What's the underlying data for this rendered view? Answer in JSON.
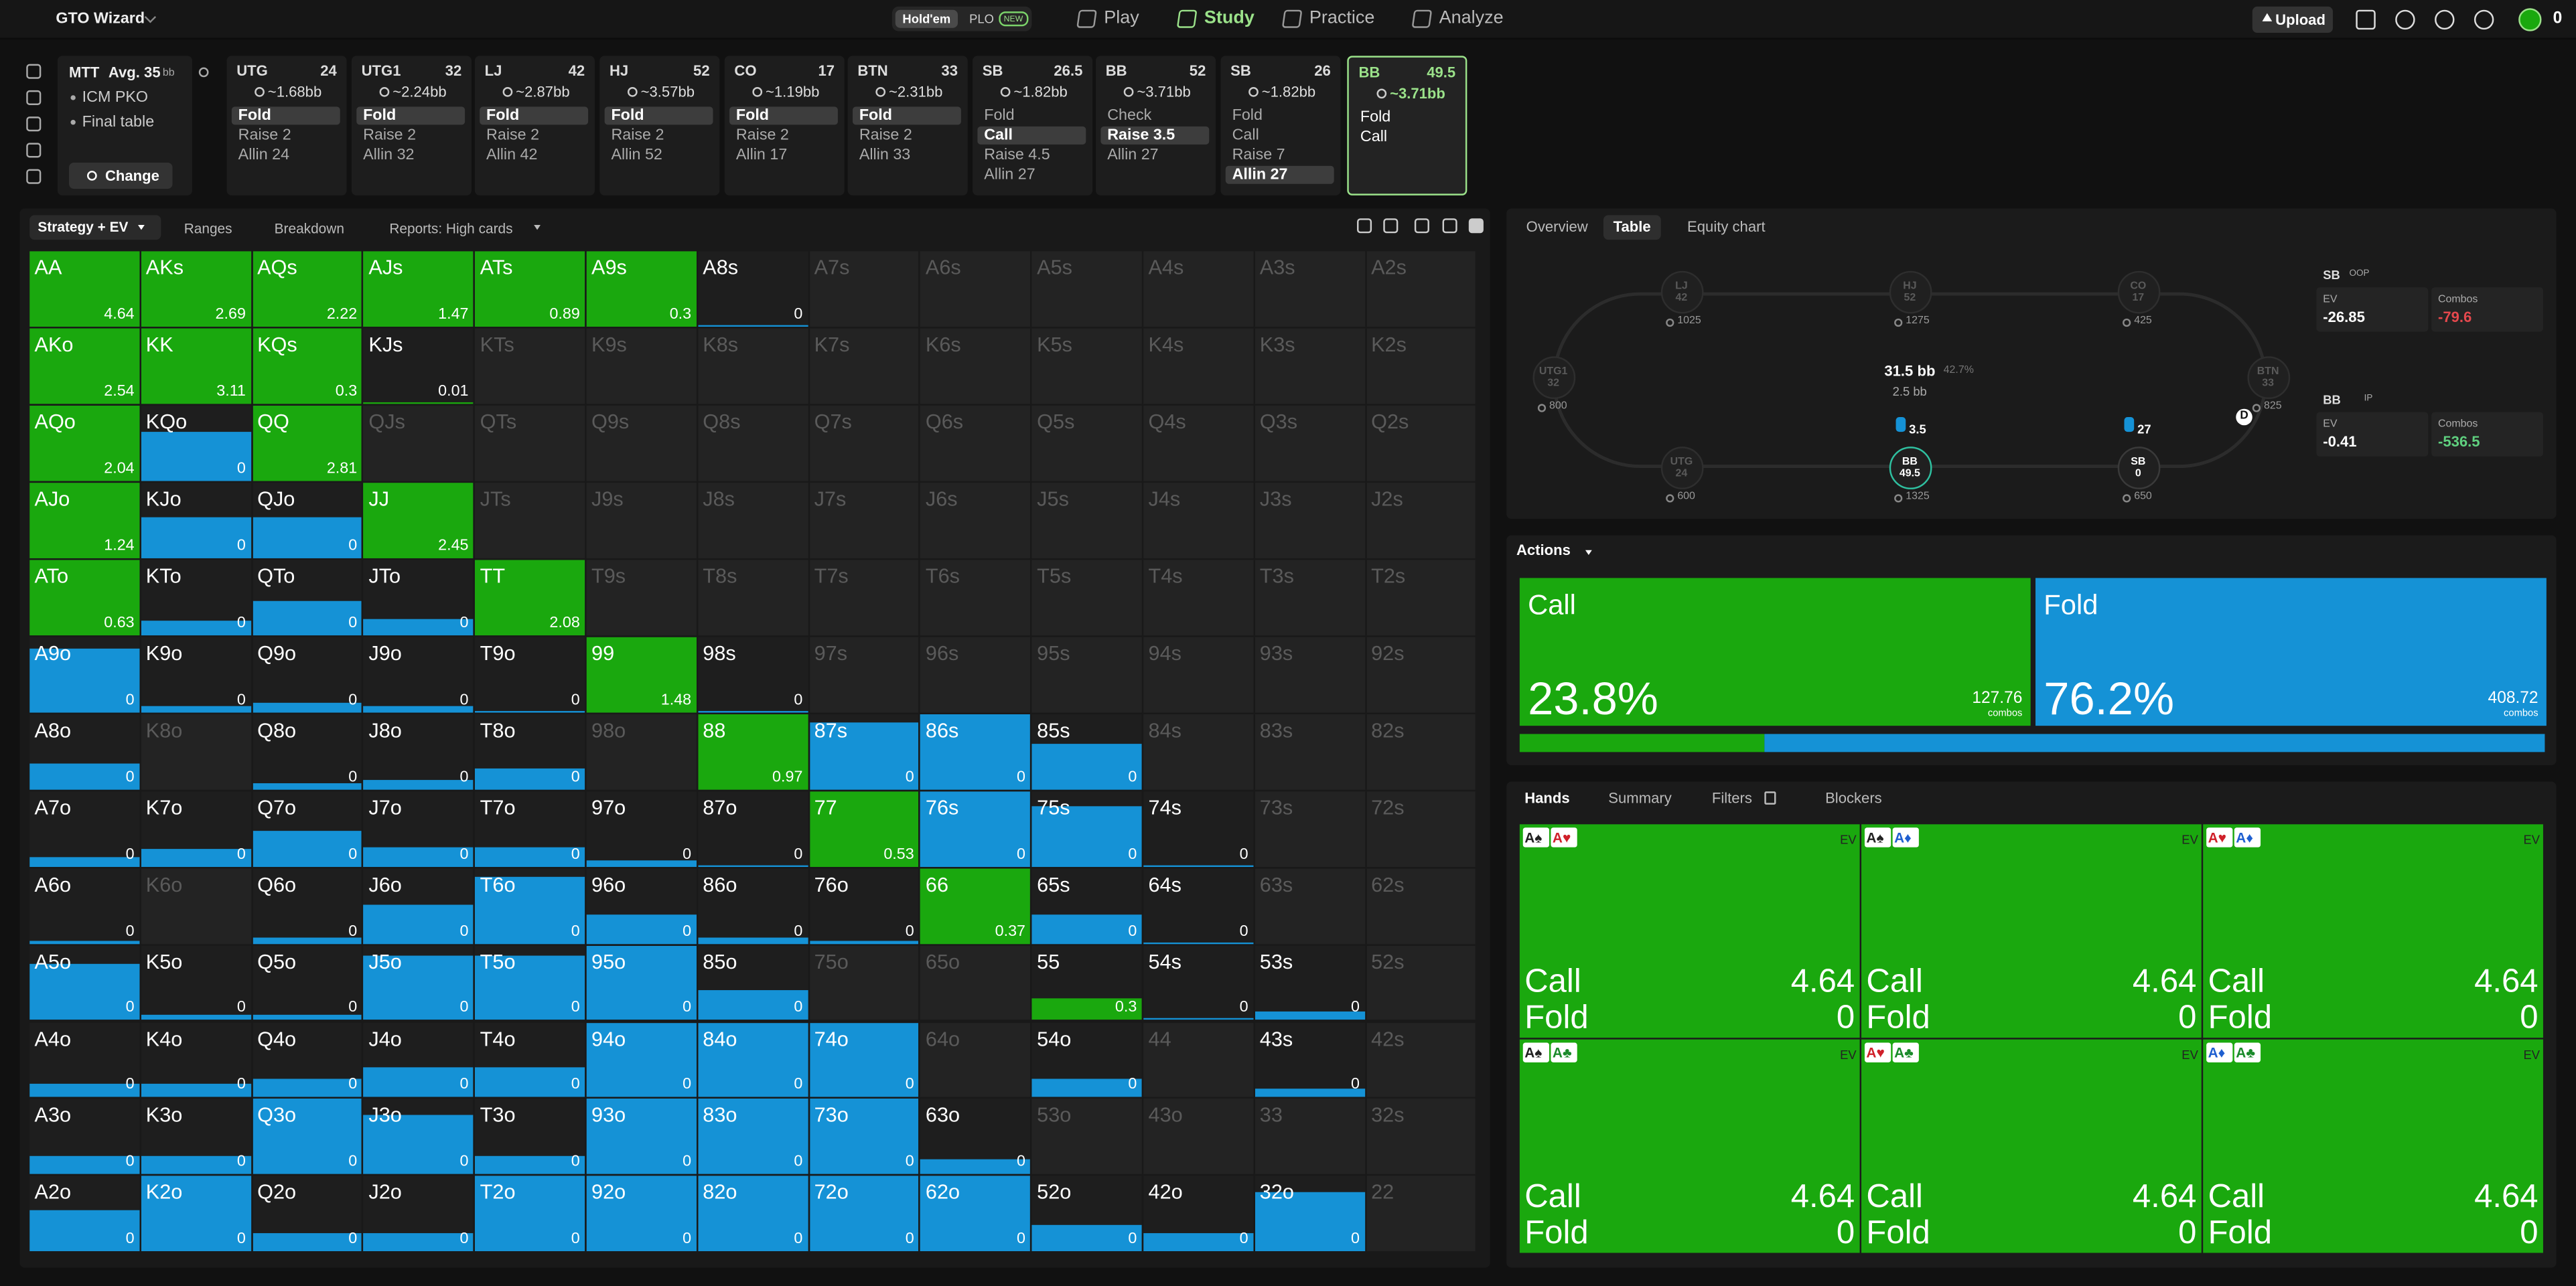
{
  "nav": {
    "brand": "GTO Wizard",
    "game_modes": [
      "Hold'em",
      "PLO"
    ],
    "badge": "NEW",
    "menu": [
      "Play",
      "Study",
      "Practice",
      "Analyze"
    ],
    "active_menu": 1,
    "upload": "Upload",
    "balance": "0"
  },
  "settings": {
    "format": "MTT",
    "avg": "Avg. 35",
    "avg_unit": "bb",
    "items": [
      "ICM PKO",
      "Final table"
    ],
    "button": "Change"
  },
  "positions": [
    {
      "pos": "UTG",
      "stack": 24,
      "ev": "~1.68bb",
      "actions": [
        "Fold",
        "Raise 2",
        "Allin 24"
      ],
      "selected": 0
    },
    {
      "pos": "UTG1",
      "stack": 32,
      "ev": "~2.24bb",
      "actions": [
        "Fold",
        "Raise 2",
        "Allin 32"
      ],
      "selected": 0
    },
    {
      "pos": "LJ",
      "stack": 42,
      "ev": "~2.87bb",
      "actions": [
        "Fold",
        "Raise 2",
        "Allin 42"
      ],
      "selected": 0
    },
    {
      "pos": "HJ",
      "stack": 52,
      "ev": "~3.57bb",
      "actions": [
        "Fold",
        "Raise 2",
        "Allin 52"
      ],
      "selected": 0
    },
    {
      "pos": "CO",
      "stack": 17,
      "ev": "~1.19bb",
      "actions": [
        "Fold",
        "Raise 2",
        "Allin 17"
      ],
      "selected": 0
    },
    {
      "pos": "BTN",
      "stack": 33,
      "ev": "~2.31bb",
      "actions": [
        "Fold",
        "Raise 2",
        "Allin 33"
      ],
      "selected": 0
    },
    {
      "pos": "SB",
      "stack": 26.5,
      "ev": "~1.82bb",
      "actions": [
        "Fold",
        "Call",
        "Raise 4.5",
        "Allin 27"
      ],
      "selected": 1
    },
    {
      "pos": "BB",
      "stack": 52,
      "ev": "~3.71bb",
      "actions": [
        "Check",
        "Raise 3.5",
        "Allin 27"
      ],
      "selected": 1
    },
    {
      "pos": "SB",
      "stack": 26,
      "ev": "~1.82bb",
      "actions": [
        "Fold",
        "Call",
        "Raise 7",
        "Allin 27"
      ],
      "selected": 3
    },
    {
      "pos": "BB",
      "stack": 49.5,
      "ev": "~3.71bb",
      "actions": [
        "Fold",
        "Call"
      ],
      "active": true
    }
  ],
  "toolbar": {
    "view": "Strategy + EV",
    "tabs": [
      "Ranges",
      "Breakdown",
      "Reports: High cards"
    ]
  },
  "grid": [
    [
      {
        "h": "AA",
        "ev": 4.64,
        "c": 100,
        "f": 0
      },
      {
        "h": "AKs",
        "ev": 2.69,
        "c": 100,
        "f": 0
      },
      {
        "h": "AQs",
        "ev": 2.22,
        "c": 100,
        "f": 0
      },
      {
        "h": "AJs",
        "ev": 1.47,
        "c": 100,
        "f": 0
      },
      {
        "h": "ATs",
        "ev": 0.89,
        "c": 100,
        "f": 0
      },
      {
        "h": "A9s",
        "ev": 0.3,
        "c": 100,
        "f": 0
      },
      {
        "h": "A8s",
        "ev": 0,
        "c": 0,
        "f": 2
      },
      {
        "h": "A7s"
      },
      {
        "h": "A6s"
      },
      {
        "h": "A5s"
      },
      {
        "h": "A4s"
      },
      {
        "h": "A3s"
      },
      {
        "h": "A2s"
      }
    ],
    [
      {
        "h": "AKo",
        "ev": 2.54,
        "c": 100,
        "f": 0
      },
      {
        "h": "KK",
        "ev": 3.11,
        "c": 100,
        "f": 0
      },
      {
        "h": "KQs",
        "ev": 0.3,
        "c": 100,
        "f": 0
      },
      {
        "h": "KJs",
        "ev": 0.01,
        "c": 3,
        "f": 0
      },
      {
        "h": "KTs"
      },
      {
        "h": "K9s"
      },
      {
        "h": "K8s"
      },
      {
        "h": "K7s"
      },
      {
        "h": "K6s"
      },
      {
        "h": "K5s"
      },
      {
        "h": "K4s"
      },
      {
        "h": "K3s"
      },
      {
        "h": "K2s"
      }
    ],
    [
      {
        "h": "AQo",
        "ev": 2.04,
        "c": 100,
        "f": 0
      },
      {
        "h": "KQo",
        "ev": 0,
        "c": 0,
        "f": 65
      },
      {
        "h": "QQ",
        "ev": 2.81,
        "c": 100,
        "f": 0
      },
      {
        "h": "QJs"
      },
      {
        "h": "QTs"
      },
      {
        "h": "Q9s"
      },
      {
        "h": "Q8s"
      },
      {
        "h": "Q7s"
      },
      {
        "h": "Q6s"
      },
      {
        "h": "Q5s"
      },
      {
        "h": "Q4s"
      },
      {
        "h": "Q3s"
      },
      {
        "h": "Q2s"
      }
    ],
    [
      {
        "h": "AJo",
        "ev": 1.24,
        "c": 100,
        "f": 0
      },
      {
        "h": "KJo",
        "ev": 0,
        "c": 0,
        "f": 55
      },
      {
        "h": "QJo",
        "ev": 0,
        "c": 0,
        "f": 55
      },
      {
        "h": "JJ",
        "ev": 2.45,
        "c": 100,
        "f": 0
      },
      {
        "h": "JTs"
      },
      {
        "h": "J9s"
      },
      {
        "h": "J8s"
      },
      {
        "h": "J7s"
      },
      {
        "h": "J6s"
      },
      {
        "h": "J5s"
      },
      {
        "h": "J4s"
      },
      {
        "h": "J3s"
      },
      {
        "h": "J2s"
      }
    ],
    [
      {
        "h": "ATo",
        "ev": 0.63,
        "c": 100,
        "f": 0
      },
      {
        "h": "KTo",
        "ev": 0,
        "c": 0,
        "f": 20
      },
      {
        "h": "QTo",
        "ev": 0,
        "c": 0,
        "f": 45
      },
      {
        "h": "JTo",
        "ev": 0,
        "c": 0,
        "f": 22
      },
      {
        "h": "TT",
        "ev": 2.08,
        "c": 100,
        "f": 0
      },
      {
        "h": "T9s"
      },
      {
        "h": "T8s"
      },
      {
        "h": "T7s"
      },
      {
        "h": "T6s"
      },
      {
        "h": "T5s"
      },
      {
        "h": "T4s"
      },
      {
        "h": "T3s"
      },
      {
        "h": "T2s"
      }
    ],
    [
      {
        "h": "A9o",
        "ev": 0,
        "c": 0,
        "f": 85
      },
      {
        "h": "K9o",
        "ev": 0,
        "c": 0,
        "f": 8
      },
      {
        "h": "Q9o",
        "ev": 0,
        "c": 0,
        "f": 12
      },
      {
        "h": "J9o",
        "ev": 0,
        "c": 0,
        "f": 8
      },
      {
        "h": "T9o",
        "ev": 0,
        "c": 0,
        "f": 2
      },
      {
        "h": "99",
        "ev": 1.48,
        "c": 100,
        "f": 0
      },
      {
        "h": "98s",
        "ev": 0,
        "c": 0,
        "f": 2
      },
      {
        "h": "97s"
      },
      {
        "h": "96s"
      },
      {
        "h": "95s"
      },
      {
        "h": "94s"
      },
      {
        "h": "93s"
      },
      {
        "h": "92s"
      }
    ],
    [
      {
        "h": "A8o",
        "ev": 0,
        "c": 0,
        "f": 35
      },
      {
        "h": "K8o"
      },
      {
        "h": "Q8o",
        "ev": 0,
        "c": 0,
        "f": 8
      },
      {
        "h": "J8o",
        "ev": 0,
        "c": 0,
        "f": 12
      },
      {
        "h": "T8o",
        "ev": 0,
        "c": 0,
        "f": 28
      },
      {
        "h": "98o"
      },
      {
        "h": "88",
        "ev": 0.97,
        "c": 100,
        "f": 0
      },
      {
        "h": "87s",
        "ev": 0,
        "c": 0,
        "f": 88
      },
      {
        "h": "86s",
        "ev": 0,
        "c": 0,
        "f": 100
      },
      {
        "h": "85s",
        "ev": 0,
        "c": 0,
        "f": 60
      },
      {
        "h": "84s"
      },
      {
        "h": "83s"
      },
      {
        "h": "82s"
      }
    ],
    [
      {
        "h": "A7o",
        "ev": 0,
        "c": 0,
        "f": 12
      },
      {
        "h": "K7o",
        "ev": 0,
        "c": 0,
        "f": 22
      },
      {
        "h": "Q7o",
        "ev": 0,
        "c": 0,
        "f": 48
      },
      {
        "h": "J7o",
        "ev": 0,
        "c": 0,
        "f": 25
      },
      {
        "h": "T7o",
        "ev": 0,
        "c": 0,
        "f": 25
      },
      {
        "h": "97o",
        "ev": 0,
        "c": 0,
        "f": 8
      },
      {
        "h": "87o",
        "ev": 0,
        "c": 0,
        "f": 2
      },
      {
        "h": "77",
        "ev": 0.53,
        "c": 100,
        "f": 0
      },
      {
        "h": "76s",
        "ev": 0,
        "c": 0,
        "f": 100
      },
      {
        "h": "75s",
        "ev": 0,
        "c": 0,
        "f": 80
      },
      {
        "h": "74s",
        "ev": 0,
        "c": 0,
        "f": 2
      },
      {
        "h": "73s"
      },
      {
        "h": "72s"
      }
    ],
    [
      {
        "h": "A6o",
        "ev": 0,
        "c": 0,
        "f": 4
      },
      {
        "h": "K6o"
      },
      {
        "h": "Q6o",
        "ev": 0,
        "c": 0,
        "f": 8
      },
      {
        "h": "J6o",
        "ev": 0,
        "c": 0,
        "f": 52
      },
      {
        "h": "T6o",
        "ev": 0,
        "c": 0,
        "f": 88
      },
      {
        "h": "96o",
        "ev": 0,
        "c": 0,
        "f": 38
      },
      {
        "h": "86o",
        "ev": 0,
        "c": 0,
        "f": 8
      },
      {
        "h": "76o",
        "ev": 0,
        "c": 0,
        "f": 4
      },
      {
        "h": "66",
        "ev": 0.37,
        "c": 100,
        "f": 0
      },
      {
        "h": "65s",
        "ev": 0,
        "c": 0,
        "f": 38
      },
      {
        "h": "64s",
        "ev": 0,
        "c": 0,
        "f": 2
      },
      {
        "h": "63s"
      },
      {
        "h": "62s"
      }
    ],
    [
      {
        "h": "A5o",
        "ev": 0,
        "c": 0,
        "f": 75
      },
      {
        "h": "K5o",
        "ev": 0,
        "c": 0,
        "f": 8
      },
      {
        "h": "Q5o",
        "ev": 0,
        "c": 0,
        "f": 8
      },
      {
        "h": "J5o",
        "ev": 0,
        "c": 0,
        "f": 85
      },
      {
        "h": "T5o",
        "ev": 0,
        "c": 0,
        "f": 85
      },
      {
        "h": "95o",
        "ev": 0,
        "c": 0,
        "f": 100
      },
      {
        "h": "85o",
        "ev": 0,
        "c": 0,
        "f": 40
      },
      {
        "h": "75o"
      },
      {
        "h": "65o"
      },
      {
        "h": "55",
        "ev": 0.3,
        "c": 30,
        "f": 0
      },
      {
        "h": "54s",
        "ev": 0,
        "c": 0,
        "f": 4
      },
      {
        "h": "53s",
        "ev": 0,
        "c": 0,
        "f": 12
      },
      {
        "h": "52s"
      }
    ],
    [
      {
        "h": "A4o",
        "ev": 0,
        "c": 0,
        "f": 18
      },
      {
        "h": "K4o",
        "ev": 0,
        "c": 0,
        "f": 18
      },
      {
        "h": "Q4o",
        "ev": 0,
        "c": 0,
        "f": 26
      },
      {
        "h": "J4o",
        "ev": 0,
        "c": 0,
        "f": 40
      },
      {
        "h": "T4o",
        "ev": 0,
        "c": 0,
        "f": 40
      },
      {
        "h": "94o",
        "ev": 0,
        "c": 0,
        "f": 100
      },
      {
        "h": "84o",
        "ev": 0,
        "c": 0,
        "f": 100
      },
      {
        "h": "74o",
        "ev": 0,
        "c": 0,
        "f": 100
      },
      {
        "h": "64o"
      },
      {
        "h": "54o",
        "ev": 0,
        "c": 0,
        "f": 25
      },
      {
        "h": "44"
      },
      {
        "h": "43s",
        "ev": 0,
        "c": 0,
        "f": 12
      },
      {
        "h": "42s"
      }
    ],
    [
      {
        "h": "A3o",
        "ev": 0,
        "c": 0,
        "f": 25
      },
      {
        "h": "K3o",
        "ev": 0,
        "c": 0,
        "f": 25
      },
      {
        "h": "Q3o",
        "ev": 0,
        "c": 0,
        "f": 100
      },
      {
        "h": "J3o",
        "ev": 0,
        "c": 0,
        "f": 80
      },
      {
        "h": "T3o",
        "ev": 0,
        "c": 0,
        "f": 25
      },
      {
        "h": "93o",
        "ev": 0,
        "c": 0,
        "f": 100
      },
      {
        "h": "83o",
        "ev": 0,
        "c": 0,
        "f": 100
      },
      {
        "h": "73o",
        "ev": 0,
        "c": 0,
        "f": 100
      },
      {
        "h": "63o",
        "ev": 0,
        "c": 0,
        "f": 20
      },
      {
        "h": "53o"
      },
      {
        "h": "43o"
      },
      {
        "h": "33"
      },
      {
        "h": "32s"
      }
    ],
    [
      {
        "h": "A2o",
        "ev": 0,
        "c": 0,
        "f": 55
      },
      {
        "h": "K2o",
        "ev": 0,
        "c": 0,
        "f": 100
      },
      {
        "h": "Q2o",
        "ev": 0,
        "c": 0,
        "f": 25
      },
      {
        "h": "J2o",
        "ev": 0,
        "c": 0,
        "f": 25
      },
      {
        "h": "T2o",
        "ev": 0,
        "c": 0,
        "f": 100
      },
      {
        "h": "92o",
        "ev": 0,
        "c": 0,
        "f": 100
      },
      {
        "h": "82o",
        "ev": 0,
        "c": 0,
        "f": 100
      },
      {
        "h": "72o",
        "ev": 0,
        "c": 0,
        "f": 100
      },
      {
        "h": "62o",
        "ev": 0,
        "c": 0,
        "f": 100
      },
      {
        "h": "52o",
        "ev": 0,
        "c": 0,
        "f": 35
      },
      {
        "h": "42o",
        "ev": 0,
        "c": 0,
        "f": 25
      },
      {
        "h": "32o",
        "ev": 0,
        "c": 0,
        "f": 80
      },
      {
        "h": "22"
      }
    ]
  ],
  "right_tabs": [
    "Overview",
    "Table",
    "Equity chart"
  ],
  "right_active": 1,
  "table": {
    "seats": [
      {
        "pos": "LJ",
        "stack": 42,
        "chips": 1025,
        "folded": true
      },
      {
        "pos": "HJ",
        "stack": 52,
        "chips": 1275,
        "folded": true
      },
      {
        "pos": "CO",
        "stack": 17,
        "chips": 425,
        "folded": true
      },
      {
        "pos": "UTG1",
        "stack": 32,
        "chips": 800,
        "folded": true
      },
      {
        "pos": "BTN",
        "stack": 33,
        "chips": 825,
        "folded": true
      },
      {
        "pos": "UTG",
        "stack": 24,
        "chips": 600,
        "folded": true
      },
      {
        "pos": "BB",
        "stack": 49.5,
        "chips": 1325,
        "active": true
      },
      {
        "pos": "SB",
        "stack": 0,
        "chips": 650
      }
    ],
    "pot": "31.5 bb",
    "pot_pct": "42.7%",
    "pot_sub": "2.5 bb",
    "bets": [
      "3.5",
      "27"
    ],
    "dealer": "D"
  },
  "players": [
    {
      "pos": "SB",
      "tag": "OOP",
      "ev_label": "EV",
      "ev": "-26.85",
      "combos_label": "Combos",
      "combos": "-79.6",
      "combos_color": "#e5484d"
    },
    {
      "pos": "BB",
      "tag": "IP",
      "ev_label": "EV",
      "ev": "-0.41",
      "combos_label": "Combos",
      "combos": "-536.5",
      "combos_color": "#5fd07f"
    }
  ],
  "actions": {
    "title": "Actions",
    "items": [
      {
        "name": "Call",
        "freq": {
          "value": 23.8,
          "label": "23.8%"
        },
        "combos": 127.76,
        "unit": "combos",
        "color": "#1aa80e"
      },
      {
        "name": "Fold",
        "freq": {
          "value": 76.2,
          "label": "76.2%"
        },
        "combos": 408.72,
        "unit": "combos",
        "color": "#1592d6"
      }
    ]
  },
  "hands": {
    "tabs": [
      "Hands",
      "Summary",
      "Filters",
      "Blockers"
    ],
    "cards": [
      {
        "cards": [
          {
            "r": "A",
            "s": "♠",
            "color": "#222"
          },
          {
            "r": "A",
            "s": "♥",
            "color": "#d0202a"
          }
        ],
        "ev_label": "EV",
        "rows": [
          {
            "action": "Call",
            "ev": 4.64
          },
          {
            "action": "Fold",
            "ev": 0
          }
        ]
      },
      {
        "cards": [
          {
            "r": "A",
            "s": "♠",
            "color": "#222"
          },
          {
            "r": "A",
            "s": "♦",
            "color": "#1f5fd0"
          }
        ],
        "ev_label": "EV",
        "rows": [
          {
            "action": "Call",
            "ev": 4.64
          },
          {
            "action": "Fold",
            "ev": 0
          }
        ]
      },
      {
        "cards": [
          {
            "r": "A",
            "s": "♥",
            "color": "#d0202a"
          },
          {
            "r": "A",
            "s": "♦",
            "color": "#1f5fd0"
          }
        ],
        "ev_label": "EV",
        "rows": [
          {
            "action": "Call",
            "ev": 4.64
          },
          {
            "action": "Fold",
            "ev": 0
          }
        ]
      },
      {
        "cards": [
          {
            "r": "A",
            "s": "♠",
            "color": "#222"
          },
          {
            "r": "A",
            "s": "♣",
            "color": "#1a8a2a"
          }
        ],
        "ev_label": "EV",
        "rows": [
          {
            "action": "Call",
            "ev": 4.64
          },
          {
            "action": "Fold",
            "ev": 0
          }
        ]
      },
      {
        "cards": [
          {
            "r": "A",
            "s": "♥",
            "color": "#d0202a"
          },
          {
            "r": "A",
            "s": "♣",
            "color": "#1a8a2a"
          }
        ],
        "ev_label": "EV",
        "rows": [
          {
            "action": "Call",
            "ev": 4.64
          },
          {
            "action": "Fold",
            "ev": 0
          }
        ]
      },
      {
        "cards": [
          {
            "r": "A",
            "s": "♦",
            "color": "#1f5fd0"
          },
          {
            "r": "A",
            "s": "♣",
            "color": "#1a8a2a"
          }
        ],
        "ev_label": "EV",
        "rows": [
          {
            "action": "Call",
            "ev": 4.64
          },
          {
            "action": "Fold",
            "ev": 0
          }
        ]
      }
    ]
  }
}
